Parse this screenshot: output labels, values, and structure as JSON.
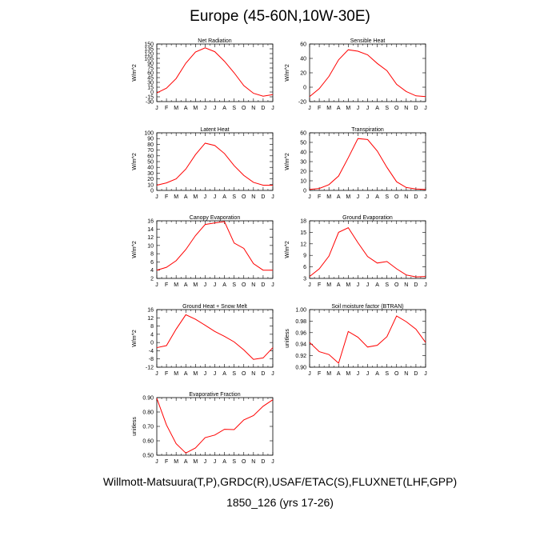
{
  "title": "Europe (45-60N,10W-30E)",
  "footer_line1": "Willmott-Matsuura(T,P),GRDC(R),USAF/ETAC(S),FLUXNET(LHF,GPP)",
  "footer_line2": "1850_126 (yrs 17-26)",
  "colors": {
    "line": "#ff0000",
    "axis": "#000000"
  },
  "months": [
    "J",
    "F",
    "M",
    "A",
    "M",
    "J",
    "J",
    "A",
    "S",
    "O",
    "N",
    "D",
    "J"
  ],
  "chart_data": [
    {
      "type": "line",
      "title": "Net Radiation",
      "ylabel": "W/m^2",
      "ylim": [
        -30,
        150
      ],
      "yticks": [
        "-30",
        "-15",
        "0",
        "15",
        "30",
        "45",
        "60",
        "75",
        "90",
        "105",
        "120",
        "135",
        "150"
      ],
      "yticks_val": [
        -30,
        -15,
        0,
        15,
        30,
        45,
        60,
        75,
        90,
        105,
        120,
        135,
        150
      ],
      "values": [
        -3,
        12,
        42,
        90,
        125,
        138,
        126,
        96,
        60,
        20,
        -4,
        -13,
        -8
      ]
    },
    {
      "type": "line",
      "title": "Sensible Heat",
      "ylabel": "W/m^2",
      "ylim": [
        -20,
        60
      ],
      "yticks": [
        "-20",
        "0",
        "20",
        "40",
        "60"
      ],
      "yticks_val": [
        -20,
        0,
        20,
        40,
        60
      ],
      "values": [
        -13,
        -2,
        15,
        38,
        52,
        50,
        45,
        33,
        23,
        4,
        -6,
        -12,
        -13
      ]
    },
    {
      "type": "line",
      "title": "Latent Heat",
      "ylabel": "W/m^2",
      "ylim": [
        0,
        100
      ],
      "yticks": [
        "0",
        "10",
        "20",
        "30",
        "40",
        "50",
        "60",
        "70",
        "80",
        "90",
        "100"
      ],
      "yticks_val": [
        0,
        10,
        20,
        30,
        40,
        50,
        60,
        70,
        80,
        90,
        100
      ],
      "values": [
        9,
        13,
        20,
        37,
        62,
        82,
        78,
        64,
        43,
        26,
        14,
        9,
        9
      ]
    },
    {
      "type": "line",
      "title": "Transpiration",
      "ylabel": "W/m^2",
      "ylim": [
        0,
        60
      ],
      "yticks": [
        "0",
        "10",
        "20",
        "30",
        "40",
        "50",
        "60"
      ],
      "yticks_val": [
        0,
        10,
        20,
        30,
        40,
        50,
        60
      ],
      "values": [
        1,
        2,
        6,
        15,
        34,
        54,
        53,
        41,
        24,
        9,
        3,
        1.5,
        1
      ]
    },
    {
      "type": "line",
      "title": "Canopy Evaporation",
      "ylabel": "W/m^2",
      "ylim": [
        2,
        16
      ],
      "yticks": [
        "2",
        "4",
        "6",
        "8",
        "10",
        "12",
        "14",
        "16"
      ],
      "yticks_val": [
        2,
        4,
        6,
        8,
        10,
        12,
        14,
        16
      ],
      "values": [
        4,
        4.7,
        6.3,
        9,
        12.4,
        15.1,
        15.5,
        15.8,
        10.6,
        9.3,
        5.6,
        4,
        4
      ]
    },
    {
      "type": "line",
      "title": "Ground Evaporation",
      "ylabel": "W/m^2",
      "ylim": [
        3,
        18
      ],
      "yticks": [
        "3",
        "6",
        "9",
        "12",
        "15",
        "18"
      ],
      "yticks_val": [
        3,
        6,
        9,
        12,
        15,
        18
      ],
      "values": [
        3.5,
        5.5,
        8.8,
        15,
        16.2,
        12.3,
        8.7,
        7,
        7.4,
        5.5,
        3.9,
        3.4,
        3.5
      ]
    },
    {
      "type": "line",
      "title": "Ground Heat + Snow Melt",
      "ylabel": "W/m^2",
      "ylim": [
        -12,
        16
      ],
      "yticks": [
        "-12",
        "-8",
        "-4",
        "0",
        "4",
        "8",
        "12",
        "16"
      ],
      "yticks_val": [
        -12,
        -8,
        -4,
        0,
        4,
        8,
        12,
        16
      ],
      "values": [
        -2.5,
        -1.5,
        6.5,
        13.5,
        11.3,
        8.4,
        5.4,
        3,
        0.3,
        -3.6,
        -8.2,
        -7.5,
        -2.5
      ]
    },
    {
      "type": "line",
      "title": "Soil moisture factor (BTRAN)",
      "ylabel": "unitless",
      "ylim": [
        0.9,
        1.0
      ],
      "yticks": [
        "0.90",
        "0.92",
        "0.94",
        "0.96",
        "0.98",
        "1.00"
      ],
      "yticks_val": [
        0.9,
        0.92,
        0.94,
        0.96,
        0.98,
        1.0
      ],
      "values": [
        0.943,
        0.927,
        0.922,
        0.907,
        0.962,
        0.952,
        0.935,
        0.938,
        0.953,
        0.989,
        0.979,
        0.966,
        0.943
      ]
    },
    {
      "type": "line",
      "title": "Evaporative Fraction",
      "ylabel": "unitless",
      "ylim": [
        0.5,
        0.9
      ],
      "yticks": [
        "0.50",
        "0.60",
        "0.70",
        "0.80",
        "0.90"
      ],
      "yticks_val": [
        0.5,
        0.6,
        0.7,
        0.8,
        0.9
      ],
      "values": [
        0.895,
        0.71,
        0.58,
        0.515,
        0.55,
        0.622,
        0.64,
        0.68,
        0.678,
        0.745,
        0.775,
        0.84,
        0.885
      ]
    }
  ]
}
